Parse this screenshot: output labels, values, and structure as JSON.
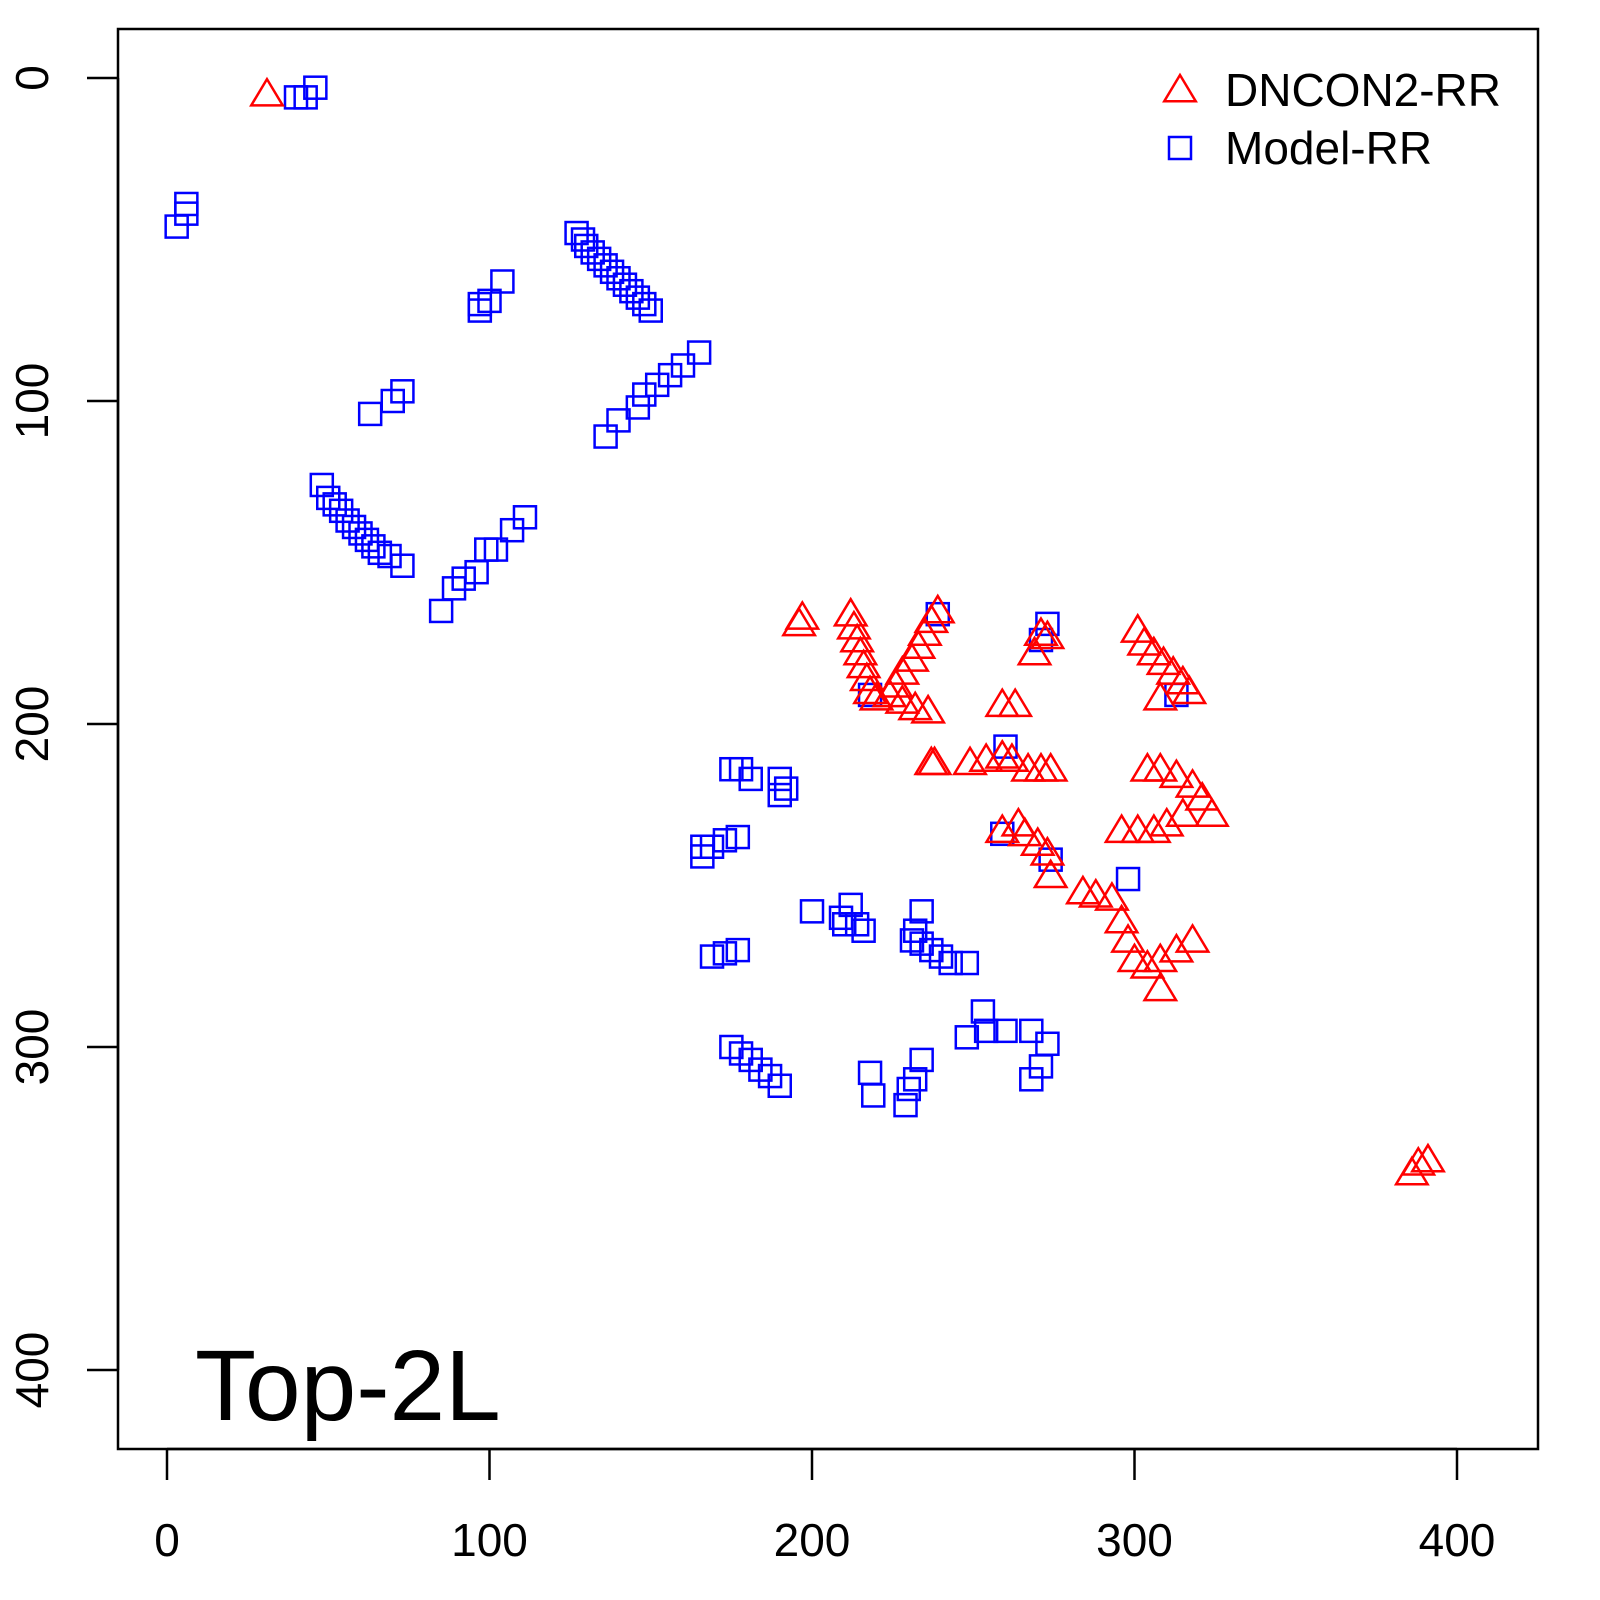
{
  "chart_data": {
    "type": "scatter",
    "title": "",
    "xlabel": "",
    "ylabel": "",
    "xlim": [
      -15,
      426
    ],
    "ylim": [
      426,
      -15
    ],
    "y_reversed": true,
    "x_ticks": [
      0,
      100,
      200,
      300,
      400
    ],
    "y_ticks": [
      0,
      100,
      200,
      300,
      400
    ],
    "grid": false,
    "legend_position": "top-right",
    "annotation": "Top-2L",
    "series": [
      {
        "name": "DNCON2-RR",
        "marker": "triangle-open",
        "color": "#ff0000",
        "points": [
          [
            31,
            5
          ],
          [
            196,
            169
          ],
          [
            197,
            167
          ],
          [
            212,
            166
          ],
          [
            213,
            170
          ],
          [
            214,
            174
          ],
          [
            215,
            178
          ],
          [
            216,
            182
          ],
          [
            217,
            186
          ],
          [
            218,
            190
          ],
          [
            220,
            192
          ],
          [
            239,
            165
          ],
          [
            237,
            168
          ],
          [
            235,
            172
          ],
          [
            233,
            176
          ],
          [
            231,
            180
          ],
          [
            228,
            184
          ],
          [
            226,
            188
          ],
          [
            224,
            191
          ],
          [
            228,
            193
          ],
          [
            232,
            195
          ],
          [
            236,
            196
          ],
          [
            237,
            212
          ],
          [
            238,
            212
          ],
          [
            271,
            172
          ],
          [
            269,
            178
          ],
          [
            273,
            173
          ],
          [
            259,
            194
          ],
          [
            263,
            194
          ],
          [
            249,
            212
          ],
          [
            254,
            211
          ],
          [
            259,
            210
          ],
          [
            262,
            211
          ],
          [
            267,
            214
          ],
          [
            271,
            214
          ],
          [
            274,
            214
          ],
          [
            259,
            233
          ],
          [
            264,
            231
          ],
          [
            266,
            234
          ],
          [
            270,
            237
          ],
          [
            273,
            240
          ],
          [
            274,
            247
          ],
          [
            284,
            252
          ],
          [
            288,
            253
          ],
          [
            293,
            254
          ],
          [
            296,
            261
          ],
          [
            298,
            267
          ],
          [
            300,
            273
          ],
          [
            304,
            275
          ],
          [
            308,
            273
          ],
          [
            313,
            270
          ],
          [
            318,
            267
          ],
          [
            308,
            282
          ],
          [
            301,
            171
          ],
          [
            303,
            175
          ],
          [
            306,
            178
          ],
          [
            309,
            181
          ],
          [
            312,
            184
          ],
          [
            315,
            187
          ],
          [
            317,
            190
          ],
          [
            308,
            192
          ],
          [
            304,
            214
          ],
          [
            308,
            214
          ],
          [
            313,
            216
          ],
          [
            318,
            219
          ],
          [
            321,
            223
          ],
          [
            324,
            228
          ],
          [
            296,
            233
          ],
          [
            301,
            233
          ],
          [
            306,
            233
          ],
          [
            310,
            231
          ],
          [
            315,
            228
          ],
          [
            388,
            336
          ],
          [
            391,
            335
          ],
          [
            386,
            339
          ]
        ]
      },
      {
        "name": "Model-RR",
        "marker": "square-open",
        "color": "#0000ff",
        "points": [
          [
            46,
            3
          ],
          [
            43,
            6
          ],
          [
            40,
            6
          ],
          [
            6,
            39
          ],
          [
            6,
            42
          ],
          [
            3,
            46
          ],
          [
            127,
            48
          ],
          [
            129,
            50
          ],
          [
            130,
            52
          ],
          [
            132,
            54
          ],
          [
            134,
            56
          ],
          [
            136,
            58
          ],
          [
            138,
            60
          ],
          [
            140,
            62
          ],
          [
            142,
            64
          ],
          [
            144,
            66
          ],
          [
            146,
            68
          ],
          [
            148,
            70
          ],
          [
            150,
            72
          ],
          [
            104,
            63
          ],
          [
            100,
            69
          ],
          [
            97,
            72
          ],
          [
            97,
            70
          ],
          [
            165,
            85
          ],
          [
            160,
            89
          ],
          [
            156,
            92
          ],
          [
            152,
            95
          ],
          [
            148,
            98
          ],
          [
            146,
            102
          ],
          [
            140,
            106
          ],
          [
            136,
            111
          ],
          [
            73,
            97
          ],
          [
            70,
            100
          ],
          [
            63,
            104
          ],
          [
            48,
            126
          ],
          [
            50,
            130
          ],
          [
            52,
            132
          ],
          [
            54,
            134
          ],
          [
            56,
            137
          ],
          [
            58,
            139
          ],
          [
            60,
            141
          ],
          [
            62,
            143
          ],
          [
            64,
            145
          ],
          [
            66,
            147
          ],
          [
            69,
            148
          ],
          [
            73,
            151
          ],
          [
            111,
            136
          ],
          [
            107,
            140
          ],
          [
            102,
            146
          ],
          [
            99,
            146
          ],
          [
            96,
            153
          ],
          [
            92,
            155
          ],
          [
            89,
            158
          ],
          [
            85,
            165
          ],
          [
            175,
            214
          ],
          [
            178,
            214
          ],
          [
            181,
            217
          ],
          [
            190,
            217
          ],
          [
            192,
            220
          ],
          [
            190,
            222
          ],
          [
            166,
            241
          ],
          [
            169,
            238
          ],
          [
            173,
            236
          ],
          [
            177,
            235
          ],
          [
            166,
            238
          ],
          [
            200,
            258
          ],
          [
            209,
            260
          ],
          [
            212,
            256
          ],
          [
            214,
            262
          ],
          [
            216,
            264
          ],
          [
            210,
            262
          ],
          [
            169,
            272
          ],
          [
            173,
            271
          ],
          [
            177,
            270
          ],
          [
            231,
            267
          ],
          [
            234,
            258
          ],
          [
            232,
            264
          ],
          [
            234,
            268
          ],
          [
            237,
            270
          ],
          [
            240,
            272
          ],
          [
            243,
            274
          ],
          [
            248,
            274
          ],
          [
            175,
            300
          ],
          [
            178,
            302
          ],
          [
            181,
            304
          ],
          [
            184,
            307
          ],
          [
            187,
            309
          ],
          [
            190,
            312
          ],
          [
            218,
            308
          ],
          [
            219,
            315
          ],
          [
            229,
            318
          ],
          [
            230,
            313
          ],
          [
            232,
            310
          ],
          [
            234,
            304
          ],
          [
            253,
            289
          ],
          [
            248,
            297
          ],
          [
            254,
            295
          ],
          [
            260,
            295
          ],
          [
            268,
            295
          ],
          [
            273,
            299
          ],
          [
            268,
            310
          ],
          [
            271,
            306
          ],
          [
            273,
            169
          ],
          [
            271,
            174
          ],
          [
            239,
            166
          ],
          [
            218,
            191
          ],
          [
            260,
            207
          ],
          [
            274,
            242
          ],
          [
            298,
            248
          ],
          [
            313,
            191
          ],
          [
            259,
            234
          ]
        ]
      }
    ]
  }
}
